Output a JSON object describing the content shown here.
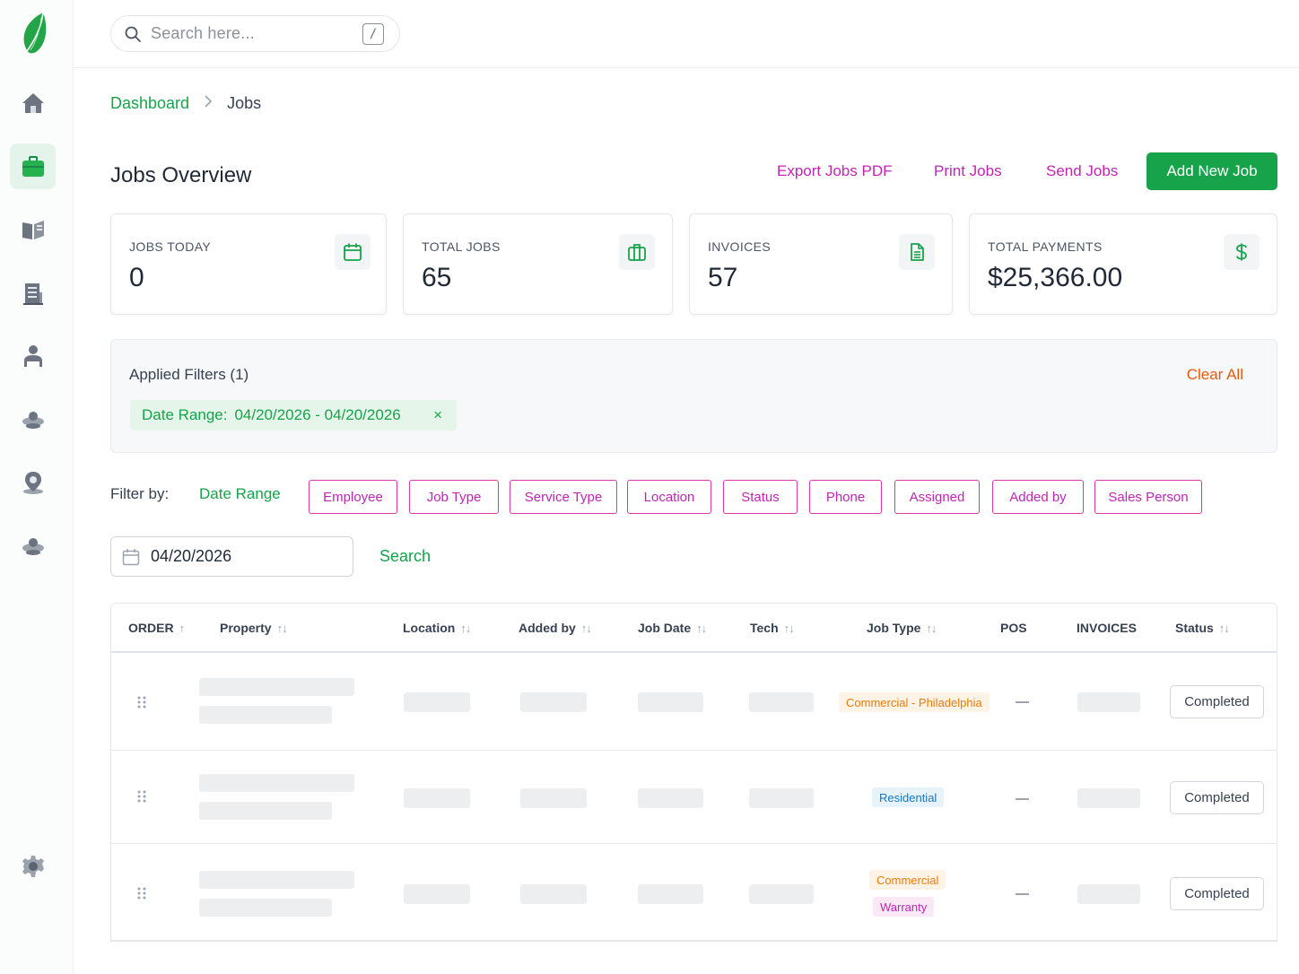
{
  "colors": {
    "brand_green": "#16a34a",
    "accent_magenta": "#c026b3",
    "clear_orange": "#ea580c"
  },
  "sidebar": {
    "logo_icon": "leaf-logo-icon",
    "items": [
      {
        "icon": "home-icon",
        "active": false
      },
      {
        "icon": "briefcase-icon",
        "active": true
      },
      {
        "icon": "book-icon",
        "active": false
      },
      {
        "icon": "building-icon",
        "active": false
      },
      {
        "icon": "user-icon",
        "active": false
      },
      {
        "icon": "users-icon",
        "active": false
      },
      {
        "icon": "location-pin-icon",
        "active": false
      },
      {
        "icon": "team-icon",
        "active": false
      }
    ],
    "settings_icon": "gear-icon"
  },
  "search": {
    "placeholder": "Search here...",
    "shortcut": "/"
  },
  "breadcrumb": {
    "home": "Dashboard",
    "current": "Jobs"
  },
  "header": {
    "title": "Jobs Overview",
    "export_pdf": "Export Jobs PDF",
    "print": "Print Jobs",
    "send": "Send Jobs",
    "add_new": "Add New Job"
  },
  "stats": [
    {
      "label": "JOBS TODAY",
      "value": "0",
      "icon": "calendar-icon"
    },
    {
      "label": "TOTAL JOBS",
      "value": "65",
      "icon": "briefcase-icon"
    },
    {
      "label": "INVOICES",
      "value": "57",
      "icon": "document-icon"
    },
    {
      "label": "TOTAL PAYMENTS",
      "value": "$25,366.00",
      "icon": "dollar-icon"
    }
  ],
  "applied_filters": {
    "title": "Applied Filters (1)",
    "clear_all": "Clear All",
    "chip_key": "Date Range:",
    "chip_value": "04/20/2026 - 04/20/2026",
    "chip_remove": "×"
  },
  "filter_by": {
    "label": "Filter by:",
    "active": "Date Range",
    "buttons": [
      "Employee",
      "Job Type",
      "Service Type",
      "Location",
      "Status",
      "Phone",
      "Assigned",
      "Added by",
      "Sales Person"
    ]
  },
  "date_input": {
    "value": "04/20/2026",
    "search_label": "Search"
  },
  "table": {
    "columns": [
      "ORDER",
      "Property",
      "Location",
      "Added by",
      "Job Date",
      "Tech",
      "Job Type",
      "POS",
      "INVOICES",
      "Status"
    ],
    "rows": [
      {
        "job_types": [
          "Commercial - Philadelphia"
        ],
        "pos": "—",
        "status": "Completed"
      },
      {
        "job_types": [
          "Residential"
        ],
        "pos": "—",
        "status": "Completed"
      },
      {
        "job_types": [
          "Commercial",
          "Warranty"
        ],
        "pos": "—",
        "status": "Completed"
      }
    ]
  }
}
